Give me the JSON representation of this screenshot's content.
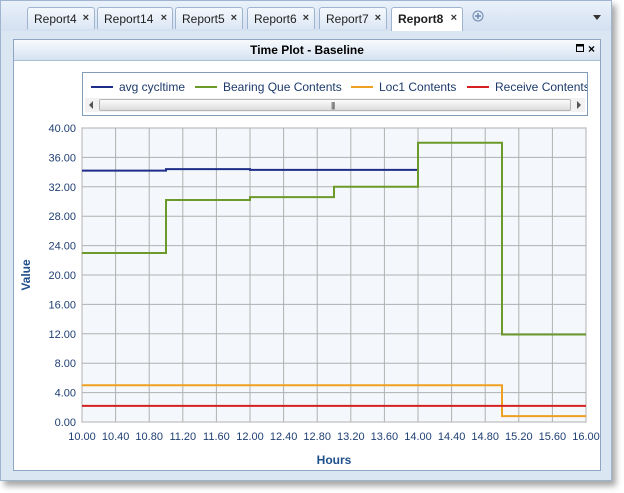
{
  "tabs": [
    {
      "label": "Report4",
      "active": false
    },
    {
      "label": "Report14",
      "active": false
    },
    {
      "label": "Report5",
      "active": false
    },
    {
      "label": "Report6",
      "active": false
    },
    {
      "label": "Report7",
      "active": false
    },
    {
      "label": "Report8",
      "active": true
    }
  ],
  "tab_close_glyph": "×",
  "panel": {
    "title": "Time Plot - Baseline",
    "restore_glyph": "▫",
    "close_glyph": "×"
  },
  "legend_scroll_grip": "|||",
  "icons": {
    "new_tab": "add-tab-icon",
    "tab_menu": "chevron-down-icon"
  },
  "chart_data": {
    "type": "line",
    "step": true,
    "title": "",
    "xlabel": "Hours",
    "ylabel": "Value",
    "xlim": [
      10.0,
      16.0
    ],
    "ylim": [
      0.0,
      40.0
    ],
    "x_ticks": [
      "10.00",
      "10.40",
      "10.80",
      "11.20",
      "11.60",
      "12.00",
      "12.40",
      "12.80",
      "13.20",
      "13.60",
      "14.00",
      "14.40",
      "14.80",
      "15.20",
      "15.60",
      "16.00"
    ],
    "y_ticks": [
      "0.00",
      "4.00",
      "8.00",
      "12.00",
      "16.00",
      "20.00",
      "24.00",
      "28.00",
      "32.00",
      "36.00",
      "40.00"
    ],
    "grid": true,
    "legend_position": "top",
    "series": [
      {
        "name": "avg cycltime",
        "color": "#1f2d8a",
        "points": [
          [
            10.0,
            34.2
          ],
          [
            11.0,
            34.4
          ],
          [
            12.0,
            34.3
          ],
          [
            13.0,
            34.3
          ],
          [
            14.0,
            34.5
          ]
        ]
      },
      {
        "name": "Bearing Que Contents",
        "color": "#6b9a2b",
        "points": [
          [
            10.0,
            23.0
          ],
          [
            11.0,
            30.2
          ],
          [
            12.0,
            30.6
          ],
          [
            13.0,
            32.0
          ],
          [
            14.0,
            38.0
          ],
          [
            15.0,
            11.9
          ],
          [
            16.0,
            11.9
          ]
        ]
      },
      {
        "name": "Loc1 Contents",
        "color": "#f0a020",
        "points": [
          [
            10.0,
            5.0
          ],
          [
            15.0,
            0.8
          ],
          [
            16.0,
            0.8
          ]
        ]
      },
      {
        "name": "Receive Contents",
        "color": "#d62020",
        "points": [
          [
            10.0,
            2.2
          ],
          [
            16.0,
            2.2
          ]
        ]
      }
    ]
  }
}
